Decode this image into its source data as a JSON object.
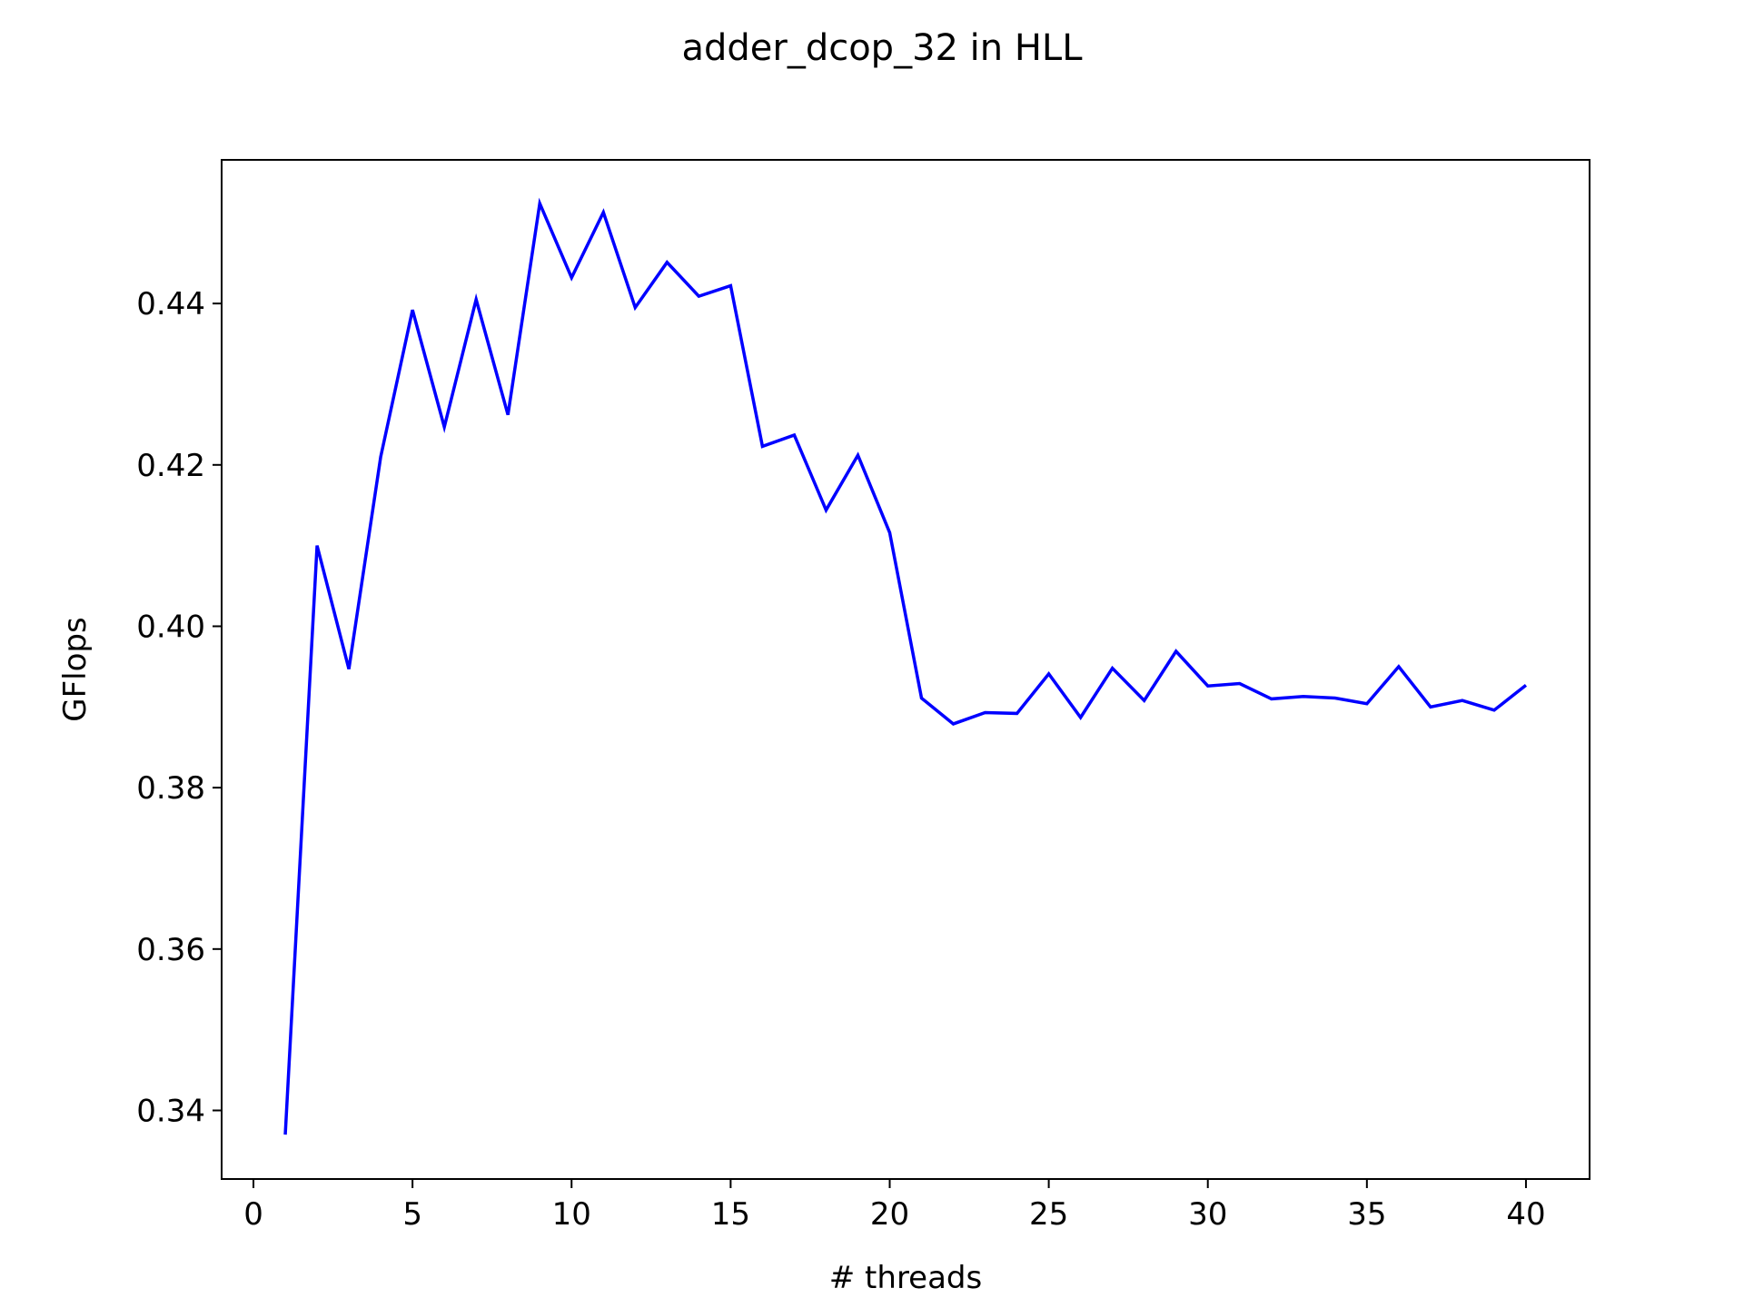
{
  "chart_data": {
    "type": "line",
    "title": "adder_dcop_32 in HLL",
    "xlabel": "# threads",
    "ylabel": "GFlops",
    "xlim": [
      -1,
      42
    ],
    "ylim": [
      0.3315,
      0.4578
    ],
    "xticks": [
      0,
      5,
      10,
      15,
      20,
      25,
      30,
      35,
      40
    ],
    "xtick_labels": [
      "0",
      "5",
      "10",
      "15",
      "20",
      "25",
      "30",
      "35",
      "40"
    ],
    "yticks": [
      0.34,
      0.36,
      0.38,
      0.4,
      0.42,
      0.44
    ],
    "ytick_labels": [
      "0.34",
      "0.36",
      "0.38",
      "0.40",
      "0.42",
      "0.44"
    ],
    "grid": false,
    "legend": "none",
    "series": [
      {
        "color": "#0000ff",
        "x": [
          1,
          2,
          3,
          4,
          5,
          6,
          7,
          8,
          9,
          10,
          11,
          12,
          13,
          14,
          15,
          16,
          17,
          18,
          19,
          20,
          21,
          22,
          23,
          24,
          25,
          26,
          27,
          28,
          29,
          30,
          31,
          32,
          33,
          34,
          35,
          36,
          37,
          38,
          39,
          40
        ],
        "values": [
          0.337,
          0.41,
          0.3947,
          0.421,
          0.4392,
          0.4247,
          0.4405,
          0.4262,
          0.4524,
          0.4432,
          0.4513,
          0.4395,
          0.4451,
          0.4409,
          0.4422,
          0.4223,
          0.4237,
          0.4144,
          0.4212,
          0.4116,
          0.3911,
          0.3879,
          0.3893,
          0.3892,
          0.3941,
          0.3887,
          0.3948,
          0.3908,
          0.3969,
          0.3926,
          0.3929,
          0.391,
          0.3913,
          0.3911,
          0.3904,
          0.395,
          0.39,
          0.3908,
          0.3896,
          0.3927
        ]
      }
    ]
  }
}
